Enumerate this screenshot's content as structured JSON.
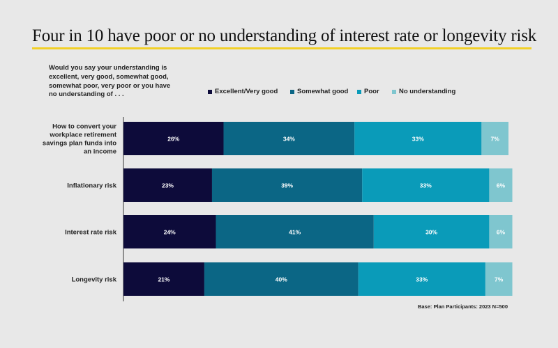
{
  "title": "Four in 10 have poor or no understanding of interest rate or longevity risk",
  "question": "Would you say your understanding is excellent, very good, somewhat good, somewhat poor, very poor or you have no understanding of . . .",
  "base_note": "Base: Plan Participants: 2023 N=500",
  "colors": {
    "excellent": "#0d0b3a",
    "somewhat_good": "#0b6685",
    "poor": "#0a9bb9",
    "none": "#7fc6cf",
    "title_rule": "#f2d027"
  },
  "chart_data": {
    "type": "bar",
    "orientation": "horizontal",
    "stacked": true,
    "title": "Four in 10 have poor or no understanding of interest rate or longevity risk",
    "xlim": [
      0,
      100
    ],
    "categories": [
      [
        "How to convert your",
        "workplace retirement",
        "savings plan funds into",
        "an income"
      ],
      [
        "Inflationary risk"
      ],
      [
        "Interest rate risk"
      ],
      [
        "Longevity risk"
      ]
    ],
    "series": [
      {
        "name": "Excellent/Very good",
        "values": [
          26,
          23,
          24,
          21
        ],
        "labels": [
          "26%",
          "23%",
          "24%",
          "21%"
        ]
      },
      {
        "name": "Somewhat good",
        "values": [
          34,
          39,
          41,
          40
        ],
        "labels": [
          "34%",
          "39%",
          "41%",
          "40%"
        ]
      },
      {
        "name": "Poor",
        "values": [
          33,
          33,
          30,
          33
        ],
        "labels": [
          "33%",
          "33%",
          "30%",
          "33%"
        ]
      },
      {
        "name": "No understanding",
        "values": [
          7,
          6,
          6,
          7
        ],
        "labels": [
          "7%",
          "6%",
          "6%",
          "7%"
        ]
      }
    ]
  }
}
